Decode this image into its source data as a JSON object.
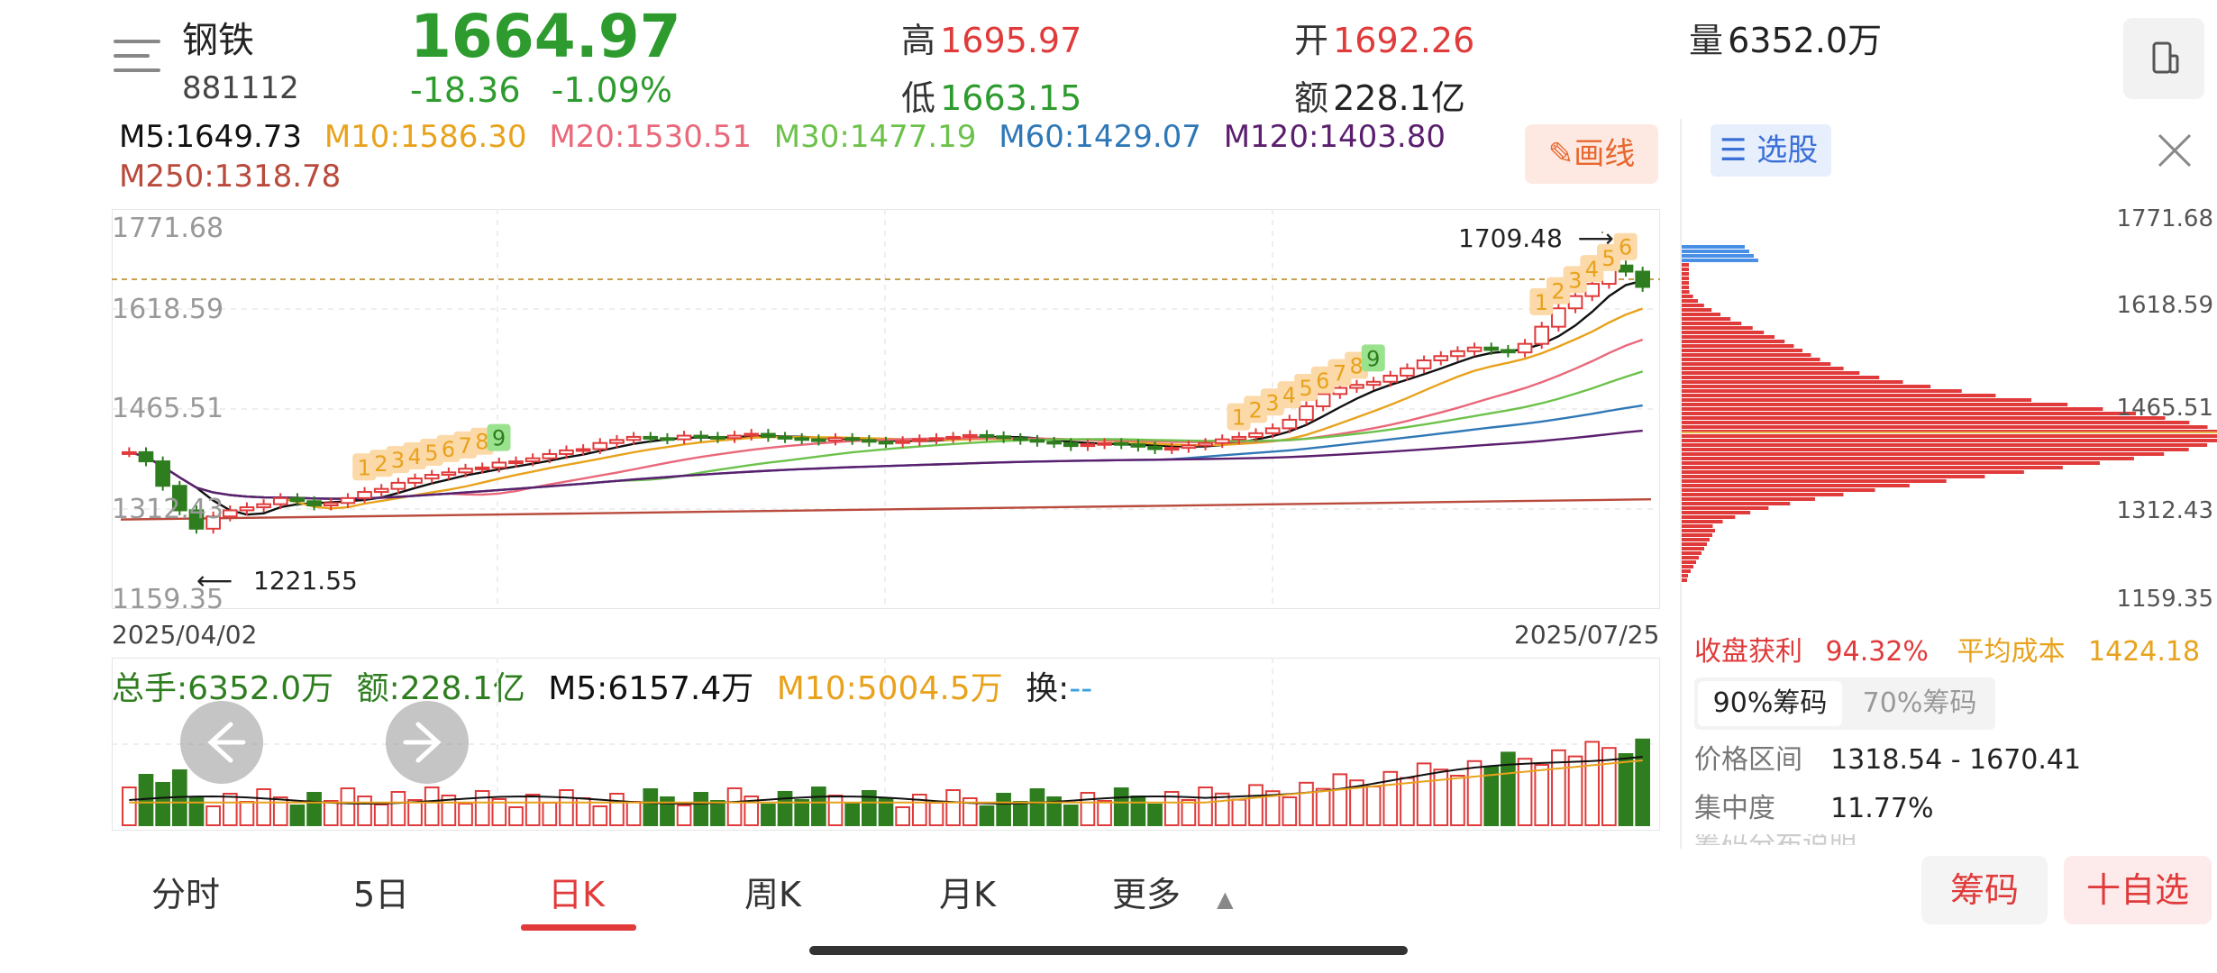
{
  "header": {
    "name": "钢铁",
    "code": "881112",
    "price": "1664.97",
    "change": "-18.36",
    "change_pct": "-1.09%",
    "high_label": "高",
    "high": "1695.97",
    "low_label": "低",
    "low": "1663.15",
    "open_label": "开",
    "open": "1692.26",
    "amount_label": "额",
    "amount": "228.1亿",
    "volume_label": "量",
    "volume": "6352.0万"
  },
  "ma": {
    "m5": "M5:1649.73",
    "m10": "M10:1586.30",
    "m20": "M20:1530.51",
    "m30": "M30:1477.19",
    "m60": "M60:1429.07",
    "m120": "M120:1403.80",
    "m250": "M250:1318.78"
  },
  "draw_button": "画线",
  "chart_axis": {
    "y_ticks": [
      "1771.68",
      "1618.59",
      "1465.51",
      "1312.43",
      "1159.35"
    ],
    "date_start": "2025/04/02",
    "date_end": "2025/07/25",
    "high_note": "1709.48",
    "low_note": "1221.55"
  },
  "volume_bar": {
    "total": "总手:6352.0万",
    "amount": "额:228.1亿",
    "m5": "M5:6157.4万",
    "m10": "M10:5004.5万",
    "turnover_label": "换:",
    "turnover_value": "--"
  },
  "tabs": [
    "分时",
    "5日",
    "日K",
    "周K",
    "月K",
    "更多"
  ],
  "buttons": {
    "chips": "筹码",
    "add_watch": "十自选"
  },
  "side_panel": {
    "xuangu": "选股",
    "profit_label": "收盘获利",
    "profit_value": "94.32%",
    "avg_cost_label": "平均成本",
    "avg_cost_value": "1424.18",
    "chip_tabs": [
      "90%筹码",
      "70%筹码"
    ],
    "range_label": "价格区间",
    "range_value": "1318.54 - 1670.41",
    "concentration_label": "集中度",
    "concentration_value": "11.77%",
    "description_label": "筹码分布说明"
  },
  "chart_data": {
    "type": "candlestick",
    "y_range": [
      1159.35,
      1771.68
    ],
    "x_range": [
      "2025/04/02",
      "2025/07/25"
    ],
    "annotations": [
      "1709.48",
      "1221.55"
    ],
    "td_markers_first": [
      "1",
      "2",
      "3",
      "4",
      "5",
      "6",
      "7",
      "8",
      "9"
    ],
    "td_markers_second": [
      "1",
      "2",
      "3",
      "4",
      "5",
      "6",
      "7",
      "8",
      "9"
    ],
    "td_markers_third": [
      "1",
      "2",
      "3",
      "4",
      "5",
      "6"
    ],
    "colors": {
      "up": "#e03a3a",
      "down": "#2e7d1e",
      "accent": "#e03a3a"
    }
  }
}
